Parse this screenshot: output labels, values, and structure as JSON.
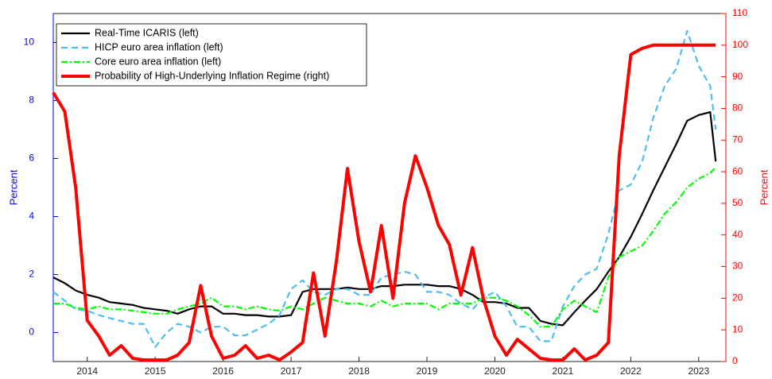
{
  "chart_data": {
    "type": "line",
    "ylabel": "Percent",
    "y2label": "Percent",
    "xlim": [
      2013.5,
      2023.4
    ],
    "xticks": [
      2014,
      2015,
      2016,
      2017,
      2018,
      2019,
      2020,
      2021,
      2022,
      2023
    ],
    "ylim": [
      -1,
      11
    ],
    "yticks": [
      0,
      2,
      4,
      6,
      8,
      10
    ],
    "y2lim": [
      0,
      110
    ],
    "y2ticks": [
      0,
      10,
      20,
      30,
      40,
      50,
      60,
      70,
      80,
      90,
      100,
      110
    ],
    "yaxis_color": "#0000ff",
    "y2axis_color": "#ff0000",
    "legend": "upper left",
    "x": [
      2013.5,
      2013.67,
      2013.83,
      2014,
      2014.17,
      2014.33,
      2014.5,
      2014.67,
      2014.83,
      2015,
      2015.17,
      2015.33,
      2015.5,
      2015.67,
      2015.83,
      2016,
      2016.17,
      2016.33,
      2016.5,
      2016.67,
      2016.83,
      2017,
      2017.17,
      2017.33,
      2017.5,
      2017.67,
      2017.83,
      2018,
      2018.17,
      2018.33,
      2018.5,
      2018.67,
      2018.83,
      2019,
      2019.17,
      2019.33,
      2019.5,
      2019.67,
      2019.83,
      2020,
      2020.17,
      2020.33,
      2020.5,
      2020.67,
      2020.83,
      2021,
      2021.17,
      2021.33,
      2021.5,
      2021.67,
      2021.83,
      2022,
      2022.17,
      2022.33,
      2022.5,
      2022.67,
      2022.83,
      2023,
      2023.17,
      2023.25
    ],
    "series": [
      {
        "name": "Real-Time ICARIS (left)",
        "color": "#000000",
        "dash": "solid",
        "width": 2.2,
        "axis": "y",
        "values": [
          1.9,
          1.7,
          1.45,
          1.3,
          1.2,
          1.05,
          1.0,
          0.95,
          0.85,
          0.8,
          0.75,
          0.65,
          0.8,
          0.9,
          0.9,
          0.65,
          0.65,
          0.6,
          0.6,
          0.55,
          0.55,
          0.6,
          1.4,
          1.5,
          1.5,
          1.5,
          1.55,
          1.5,
          1.5,
          1.6,
          1.6,
          1.65,
          1.65,
          1.65,
          1.6,
          1.6,
          1.5,
          1.3,
          1.05,
          1.05,
          1.0,
          0.85,
          0.85,
          0.4,
          0.3,
          0.25,
          0.7,
          1.1,
          1.5,
          2.1,
          2.6,
          3.3,
          4.1,
          4.9,
          5.7,
          6.5,
          7.3,
          7.5,
          7.6,
          5.9
        ]
      },
      {
        "name": "HICP euro area inflation (left)",
        "color": "#4dbeee",
        "dash": "dashed",
        "width": 2.2,
        "axis": "y",
        "values": [
          1.4,
          1.1,
          0.8,
          0.75,
          0.6,
          0.5,
          0.4,
          0.3,
          0.3,
          -0.5,
          0.0,
          0.3,
          0.2,
          0.0,
          0.2,
          0.2,
          -0.1,
          -0.1,
          0.1,
          0.3,
          0.6,
          1.5,
          1.8,
          1.4,
          1.3,
          1.5,
          1.5,
          1.3,
          1.3,
          1.9,
          2.0,
          2.1,
          2.0,
          1.4,
          1.4,
          1.3,
          1.0,
          0.8,
          1.2,
          1.4,
          0.9,
          0.2,
          0.2,
          -0.3,
          -0.3,
          0.9,
          1.6,
          2.0,
          2.2,
          3.4,
          4.9,
          5.1,
          5.9,
          7.4,
          8.5,
          9.1,
          10.4,
          9.2,
          8.5,
          7.0
        ]
      },
      {
        "name": "Core euro area inflation (left)",
        "color": "#00ff00",
        "dash": "dashdot",
        "width": 2.2,
        "axis": "y",
        "values": [
          1.0,
          1.0,
          0.85,
          0.8,
          0.9,
          0.8,
          0.8,
          0.75,
          0.7,
          0.65,
          0.65,
          0.8,
          0.9,
          1.0,
          1.2,
          0.9,
          0.9,
          0.8,
          0.9,
          0.8,
          0.75,
          0.9,
          0.8,
          1.0,
          1.2,
          1.1,
          1.0,
          1.0,
          0.9,
          1.1,
          0.9,
          1.0,
          1.0,
          1.0,
          0.8,
          1.0,
          1.0,
          1.0,
          1.2,
          1.2,
          1.1,
          0.9,
          0.6,
          0.2,
          0.2,
          0.8,
          1.1,
          0.9,
          0.7,
          1.9,
          2.6,
          2.8,
          3.0,
          3.5,
          4.1,
          4.5,
          5.0,
          5.3,
          5.5,
          5.7
        ]
      },
      {
        "name": "Probability of High-Underlying Inflation Regime (right)",
        "color": "#ff0000",
        "dash": "solid",
        "width": 4,
        "axis": "y2",
        "values": [
          85,
          79,
          55,
          13,
          8,
          2,
          5,
          1,
          0.5,
          0.5,
          0.5,
          2,
          6,
          24,
          8,
          1,
          2,
          5,
          1,
          2,
          0.5,
          3,
          6,
          28,
          8,
          32,
          61,
          38,
          22,
          43,
          20,
          50,
          65,
          55,
          43,
          37,
          21,
          36,
          20,
          8,
          2,
          7,
          4,
          1,
          0.5,
          0.5,
          4,
          0.5,
          2,
          6,
          65,
          97,
          99,
          100,
          100,
          100,
          100,
          100,
          100,
          100
        ]
      }
    ]
  }
}
